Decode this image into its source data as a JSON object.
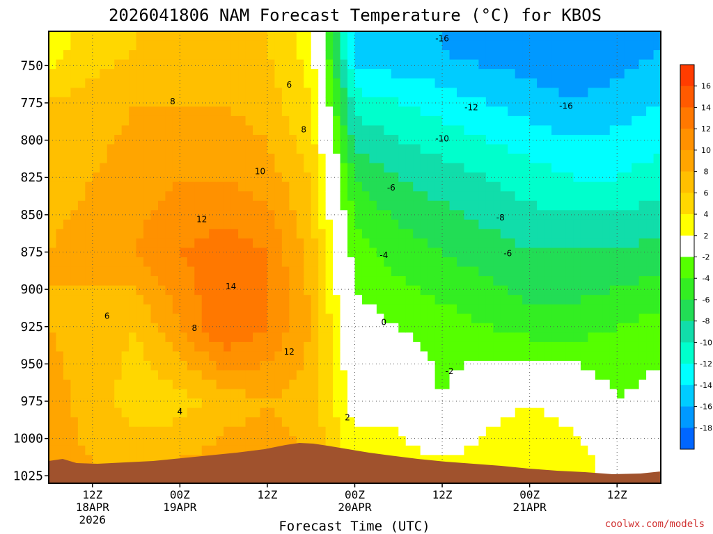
{
  "chart_data": {
    "type": "heatmap",
    "title": "2026041806 NAM Forecast Temperature (°C) for KBOS",
    "xlabel": "Forecast Time (UTC)",
    "ylabel": "",
    "x_ticks": [
      {
        "hour": 6,
        "lines": [
          "12Z",
          "18APR",
          "2026"
        ]
      },
      {
        "hour": 18,
        "lines": [
          "00Z",
          "19APR"
        ]
      },
      {
        "hour": 30,
        "lines": [
          "12Z"
        ]
      },
      {
        "hour": 42,
        "lines": [
          "00Z",
          "20APR"
        ]
      },
      {
        "hour": 54,
        "lines": [
          "12Z"
        ]
      },
      {
        "hour": 66,
        "lines": [
          "00Z",
          "21APR"
        ]
      },
      {
        "hour": 78,
        "lines": [
          "12Z"
        ]
      }
    ],
    "xlim_hours": [
      0,
      84
    ],
    "y_ticks": [
      750,
      775,
      800,
      825,
      850,
      875,
      900,
      925,
      950,
      975,
      1000,
      1025
    ],
    "ylim_hPa": [
      727,
      1030
    ],
    "y_inverted": true,
    "grid": true,
    "colorbar": {
      "ticks": [
        16,
        14,
        12,
        10,
        8,
        6,
        4,
        2,
        -2,
        -4,
        -6,
        -8,
        -10,
        -12,
        -14,
        -16,
        -18
      ],
      "colors": [
        "#ff3c00",
        "#ff5a00",
        "#ff7800",
        "#ff9100",
        "#ffa500",
        "#ffbf00",
        "#ffd700",
        "#ffff00",
        "#ffffff",
        "#55ff00",
        "#33ee22",
        "#22dd55",
        "#11ddaa",
        "#00ffcc",
        "#00ffff",
        "#00ccff",
        "#0099ff",
        "#0066ff"
      ]
    },
    "time_hours": [
      0,
      6,
      12,
      18,
      24,
      30,
      36,
      42,
      48,
      54,
      60,
      66,
      72,
      78,
      84
    ],
    "levels_hPa": [
      740,
      775,
      825,
      875,
      925,
      975,
      1015
    ],
    "temperature_C": [
      [
        3,
        5,
        6,
        7,
        7,
        6,
        3,
        -15,
        -16,
        -16,
        -17,
        -17,
        -18,
        -17,
        -16
      ],
      [
        6,
        7,
        8,
        8,
        8,
        7,
        4,
        -11,
        -12,
        -13,
        -14,
        -15,
        -16,
        -15,
        -14
      ],
      [
        7,
        8,
        9,
        10,
        10,
        9,
        6,
        -6,
        -8,
        -9,
        -10,
        -11,
        -12,
        -12,
        -11
      ],
      [
        8,
        9,
        10,
        12,
        13,
        12,
        7,
        -3,
        -5,
        -6,
        -7,
        -8,
        -8,
        -8,
        -7
      ],
      [
        8,
        7,
        6,
        10,
        14,
        12,
        8,
        -1,
        -2,
        -3,
        -4,
        -5,
        -5,
        -4,
        -3
      ],
      [
        9,
        7,
        5,
        5,
        7,
        8,
        7,
        1,
        1,
        -2,
        1,
        2,
        1,
        -2,
        -1
      ],
      [
        9,
        8,
        7,
        8,
        9,
        9,
        8,
        3,
        3,
        2,
        3,
        4,
        3,
        1,
        2
      ]
    ],
    "contour_labels": [
      {
        "hour": 33,
        "hPa": 763,
        "text": "6"
      },
      {
        "hour": 17,
        "hPa": 774,
        "text": "8"
      },
      {
        "hour": 35,
        "hPa": 793,
        "text": "8"
      },
      {
        "hour": 29,
        "hPa": 821,
        "text": "10"
      },
      {
        "hour": 21,
        "hPa": 853,
        "text": "12"
      },
      {
        "hour": 25,
        "hPa": 898,
        "text": "14"
      },
      {
        "hour": 8,
        "hPa": 918,
        "text": "6"
      },
      {
        "hour": 20,
        "hPa": 926,
        "text": "8"
      },
      {
        "hour": 33,
        "hPa": 942,
        "text": "12"
      },
      {
        "hour": 18,
        "hPa": 982,
        "text": "4"
      },
      {
        "hour": 41,
        "hPa": 986,
        "text": "2"
      },
      {
        "hour": 46,
        "hPa": 922,
        "text": "0"
      },
      {
        "hour": 55,
        "hPa": 955,
        "text": "-2"
      },
      {
        "hour": 46,
        "hPa": 877,
        "text": "-4"
      },
      {
        "hour": 47,
        "hPa": 832,
        "text": "-6"
      },
      {
        "hour": 62,
        "hPa": 852,
        "text": "-8"
      },
      {
        "hour": 54,
        "hPa": 799,
        "text": "-10"
      },
      {
        "hour": 58,
        "hPa": 778,
        "text": "-12"
      },
      {
        "hour": 54,
        "hPa": 732,
        "text": "-16"
      },
      {
        "hour": 71,
        "hPa": 777,
        "text": "-16"
      },
      {
        "hour": 63,
        "hPa": 876,
        "text": "-6"
      }
    ],
    "terrain_note": "surface"
  },
  "credit": "coolwx.com/models"
}
